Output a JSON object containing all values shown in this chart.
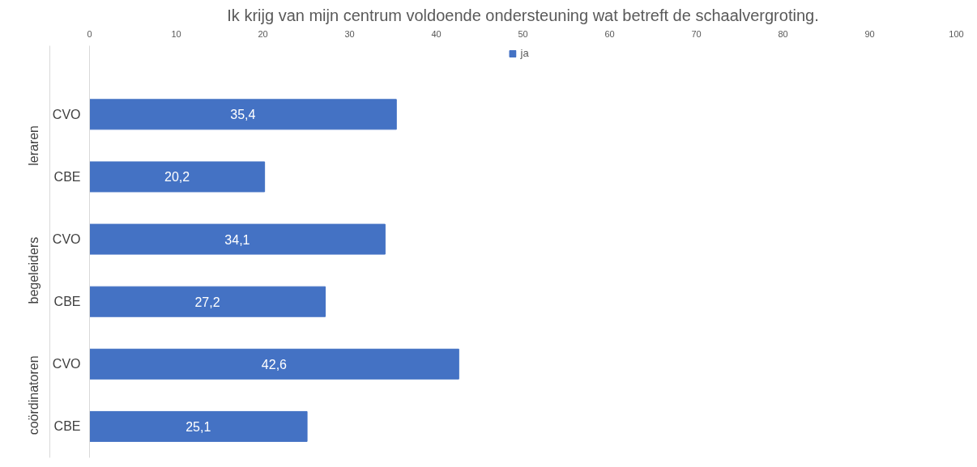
{
  "chart_data": {
    "type": "bar",
    "orientation": "horizontal",
    "title": "Ik krijg van mijn centrum voldoende ondersteuning wat betreft de schaalvergroting.",
    "categories": [
      "CVO",
      "CBE",
      "CVO",
      "CBE",
      "CVO",
      "CBE"
    ],
    "series": [
      {
        "name": "ja",
        "color": "#4472c4",
        "values": [
          35.4,
          20.2,
          34.1,
          27.2,
          42.6,
          25.1
        ],
        "value_labels": [
          "35,4",
          "20,2",
          "34,1",
          "27,2",
          "42,6",
          "25,1"
        ]
      }
    ],
    "xlim": [
      0,
      100
    ],
    "xticks": [
      0,
      10,
      20,
      30,
      40,
      50,
      60,
      70,
      80,
      90,
      100
    ],
    "annotations": [
      "leraren",
      "begeleiders",
      "coördinatoren"
    ],
    "legend": "top",
    "grid": false
  }
}
